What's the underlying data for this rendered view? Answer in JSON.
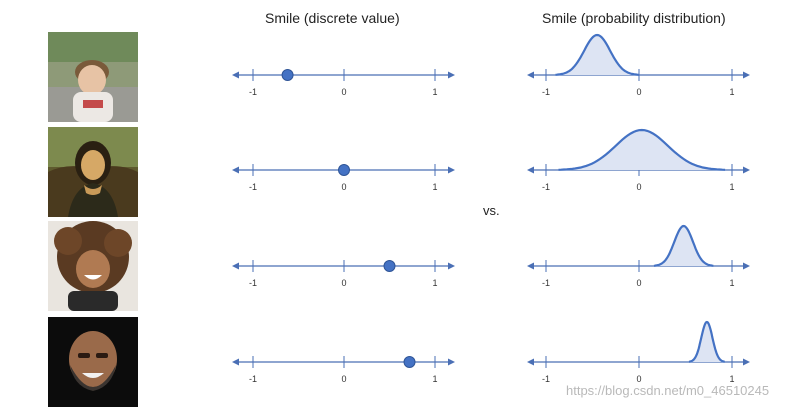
{
  "titles": {
    "discrete": "Smile (discrete value)",
    "distribution": "Smile (probability distribution)"
  },
  "separator_text": "vs.",
  "watermark": "https://blog.csdn.net/m0_46510245",
  "axis_tick_labels": [
    "-1",
    "0",
    "1"
  ],
  "colors": {
    "axis": "#4a6fb5",
    "dot": "#4472c4",
    "dot_stroke": "#2f5597",
    "curve": "#4472c4",
    "fill": "#dde4f3"
  },
  "rows": [
    {
      "photo_subject": "sad boy",
      "discrete_value": -0.62,
      "dist_mean": -0.45,
      "dist_sd": 0.14
    },
    {
      "photo_subject": "mona lisa",
      "discrete_value": 0.0,
      "dist_mean": 0.03,
      "dist_sd": 0.28
    },
    {
      "photo_subject": "smiling girl",
      "discrete_value": 0.5,
      "dist_mean": 0.48,
      "dist_sd": 0.1
    },
    {
      "photo_subject": "laughing man",
      "discrete_value": 0.72,
      "dist_mean": 0.73,
      "dist_sd": 0.06
    }
  ]
}
